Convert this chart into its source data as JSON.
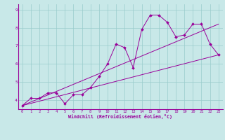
{
  "xlabel": "Windchill (Refroidissement éolien,°C)",
  "bg_color": "#c8e8e8",
  "line_color": "#990099",
  "grid_color": "#99cccc",
  "xlim": [
    -0.5,
    23.5
  ],
  "ylim": [
    3.5,
    9.3
  ],
  "yticks": [
    4,
    5,
    6,
    7,
    8,
    9
  ],
  "xticks": [
    0,
    1,
    2,
    3,
    4,
    5,
    6,
    7,
    8,
    9,
    10,
    11,
    12,
    13,
    14,
    15,
    16,
    17,
    18,
    19,
    20,
    21,
    22,
    23
  ],
  "scatter_x": [
    0,
    1,
    2,
    3,
    4,
    5,
    6,
    7,
    8,
    9,
    10,
    11,
    12,
    13,
    14,
    15,
    16,
    17,
    18,
    19,
    20,
    21,
    22,
    23
  ],
  "scatter_y": [
    3.7,
    4.1,
    4.1,
    4.4,
    4.4,
    3.8,
    4.3,
    4.3,
    4.7,
    5.3,
    6.0,
    7.1,
    6.9,
    5.8,
    7.9,
    8.7,
    8.7,
    8.3,
    7.5,
    7.6,
    8.2,
    8.2,
    7.1,
    6.5
  ],
  "line1_x": [
    0,
    23
  ],
  "line1_y": [
    3.7,
    6.5
  ],
  "line2_x": [
    0,
    23
  ],
  "line2_y": [
    3.7,
    8.2
  ],
  "marker": "D",
  "marker_size": 2.0,
  "linewidth": 0.7
}
